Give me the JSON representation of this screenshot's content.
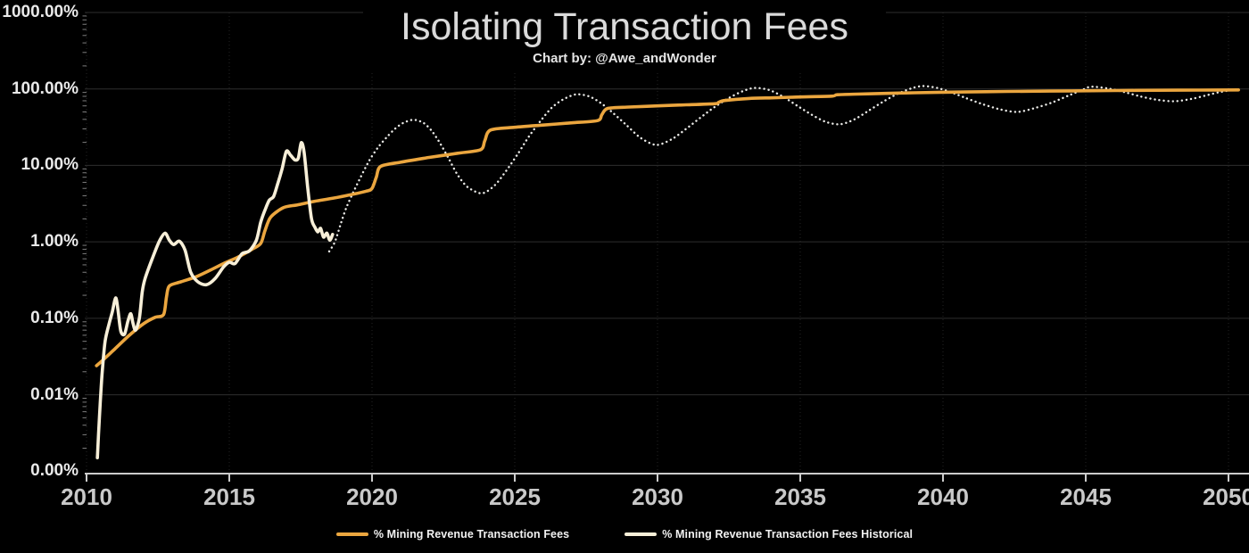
{
  "title": "Isolating Transaction Fees",
  "subtitle": "Chart by: @Awe_andWonder",
  "colors": {
    "background": "#000000",
    "model_line": "#EBA63F",
    "historical_line": "#F7EFD8",
    "projection_dotted_line": "#E9E9E6",
    "gridline": "#2e2e2e",
    "axis": "#cccccc",
    "title_text": "#dadada",
    "tick_text": "#c9c9c9"
  },
  "chart_data": {
    "type": "line",
    "title": "Isolating Transaction Fees",
    "subtitle": "Chart by: @Awe_andWonder",
    "xlabel": "",
    "ylabel": "",
    "x_axis": {
      "range": [
        2010,
        2050.5
      ],
      "tick_values": [
        2010,
        2015,
        2020,
        2025,
        2030,
        2035,
        2040,
        2045,
        2050
      ],
      "tick_labels": [
        "2010",
        "2015",
        "2020",
        "2025",
        "2030",
        "2035",
        "2040",
        "2045",
        "2050"
      ]
    },
    "y_axis": {
      "scale": "log",
      "unit": "%",
      "tick_values": [
        1000,
        100,
        10,
        1,
        0.1,
        0.01,
        0.001
      ],
      "tick_labels": [
        "1000.00%",
        "100.00%",
        "10.00%",
        "1.00%",
        "0.10%",
        "0.01%",
        "0.00%"
      ]
    },
    "legend": [
      {
        "label": "% Mining Revenue Transaction Fees",
        "color": "#EBA63F"
      },
      {
        "label": "% Mining Revenue Transaction Fees Historical",
        "color": "#F7EFD8"
      }
    ],
    "series": [
      {
        "name": "% Mining Revenue Transaction Fees Historical (projected oscillation)",
        "style": "dotted",
        "color": "#E9E9E6",
        "points": [
          [
            2018.5,
            0.75
          ],
          [
            2018.7,
            1.0
          ],
          [
            2018.9,
            1.7
          ],
          [
            2019.1,
            2.8
          ],
          [
            2019.35,
            4.5
          ],
          [
            2019.6,
            7.0
          ],
          [
            2019.9,
            11.5
          ],
          [
            2020.2,
            17.0
          ],
          [
            2020.5,
            23.0
          ],
          [
            2020.8,
            30.0
          ],
          [
            2021.1,
            36.0
          ],
          [
            2021.45,
            39.5
          ],
          [
            2021.8,
            36.0
          ],
          [
            2022.1,
            28.0
          ],
          [
            2022.4,
            19.0
          ],
          [
            2022.7,
            12.0
          ],
          [
            2023.0,
            7.5
          ],
          [
            2023.35,
            5.2
          ],
          [
            2023.85,
            4.3
          ],
          [
            2024.3,
            5.5
          ],
          [
            2024.7,
            8.5
          ],
          [
            2025.1,
            14.0
          ],
          [
            2025.5,
            24.0
          ],
          [
            2025.9,
            38.0
          ],
          [
            2026.3,
            57.0
          ],
          [
            2026.7,
            73.0
          ],
          [
            2027.15,
            85.0
          ],
          [
            2027.6,
            80.0
          ],
          [
            2028.0,
            66.0
          ],
          [
            2028.4,
            50.0
          ],
          [
            2028.9,
            34.0
          ],
          [
            2029.4,
            23.0
          ],
          [
            2029.95,
            18.5
          ],
          [
            2030.5,
            22.0
          ],
          [
            2031.0,
            30.0
          ],
          [
            2031.5,
            42.0
          ],
          [
            2032.0,
            58.0
          ],
          [
            2032.5,
            76.0
          ],
          [
            2033.0,
            94.0
          ],
          [
            2033.4,
            103.0
          ],
          [
            2033.9,
            97.0
          ],
          [
            2034.4,
            79.0
          ],
          [
            2034.9,
            60.0
          ],
          [
            2035.4,
            46.0
          ],
          [
            2035.9,
            37.0
          ],
          [
            2036.4,
            34.5
          ],
          [
            2036.9,
            40.0
          ],
          [
            2037.4,
            52.0
          ],
          [
            2037.9,
            68.0
          ],
          [
            2038.4,
            86.0
          ],
          [
            2038.9,
            102.0
          ],
          [
            2039.3,
            109.0
          ],
          [
            2039.8,
            103.0
          ],
          [
            2040.3,
            90.0
          ],
          [
            2040.8,
            76.0
          ],
          [
            2041.4,
            63.0
          ],
          [
            2042.0,
            54.0
          ],
          [
            2042.6,
            50.0
          ],
          [
            2043.2,
            56.0
          ],
          [
            2043.8,
            66.0
          ],
          [
            2044.4,
            82.0
          ],
          [
            2044.9,
            98.0
          ],
          [
            2045.2,
            107.0
          ],
          [
            2045.8,
            101.0
          ],
          [
            2046.4,
            90.0
          ],
          [
            2046.9,
            80.0
          ],
          [
            2047.5,
            72.0
          ],
          [
            2048.1,
            69.0
          ],
          [
            2048.7,
            74.0
          ],
          [
            2049.2,
            82.0
          ],
          [
            2049.7,
            91.0
          ],
          [
            2050.3,
            99.0
          ]
        ]
      },
      {
        "name": "% Mining Revenue Transaction Fees",
        "style": "solid",
        "color": "#EBA63F",
        "points": [
          [
            2010.35,
            0.024
          ],
          [
            2010.6,
            0.029
          ],
          [
            2011.0,
            0.04
          ],
          [
            2011.5,
            0.06
          ],
          [
            2012.0,
            0.085
          ],
          [
            2012.4,
            0.103
          ],
          [
            2012.7,
            0.112
          ],
          [
            2012.8,
            0.19
          ],
          [
            2012.9,
            0.265
          ],
          [
            2013.3,
            0.3
          ],
          [
            2013.8,
            0.345
          ],
          [
            2014.3,
            0.42
          ],
          [
            2014.8,
            0.52
          ],
          [
            2015.3,
            0.63
          ],
          [
            2015.8,
            0.8
          ],
          [
            2016.1,
            0.95
          ],
          [
            2016.25,
            1.4
          ],
          [
            2016.45,
            2.1
          ],
          [
            2016.9,
            2.8
          ],
          [
            2017.4,
            3.05
          ],
          [
            2018.0,
            3.4
          ],
          [
            2018.6,
            3.7
          ],
          [
            2019.2,
            4.1
          ],
          [
            2019.8,
            4.6
          ],
          [
            2020.0,
            5.0
          ],
          [
            2020.15,
            7.0
          ],
          [
            2020.3,
            9.7
          ],
          [
            2021.0,
            11.0
          ],
          [
            2022.0,
            12.7
          ],
          [
            2023.0,
            14.4
          ],
          [
            2023.8,
            16.0
          ],
          [
            2023.95,
            21.0
          ],
          [
            2024.15,
            29.0
          ],
          [
            2025.0,
            31.5
          ],
          [
            2026.0,
            33.7
          ],
          [
            2027.0,
            36.0
          ],
          [
            2027.9,
            38.5
          ],
          [
            2028.05,
            46.0
          ],
          [
            2028.25,
            55.5
          ],
          [
            2029.0,
            58.0
          ],
          [
            2030.0,
            60.0
          ],
          [
            2031.0,
            62.0
          ],
          [
            2032.0,
            64.0
          ],
          [
            2032.15,
            67.0
          ],
          [
            2032.35,
            70.5
          ],
          [
            2033.2,
            75.0
          ],
          [
            2034.0,
            76.5
          ],
          [
            2035.0,
            78.5
          ],
          [
            2036.1,
            80.5
          ],
          [
            2036.3,
            84.0
          ],
          [
            2037.0,
            85.5
          ],
          [
            2038.0,
            87.5
          ],
          [
            2039.0,
            89.0
          ],
          [
            2040.0,
            90.5
          ],
          [
            2041.5,
            92.0
          ],
          [
            2043.0,
            93.2
          ],
          [
            2044.5,
            94.2
          ],
          [
            2046.0,
            95.2
          ],
          [
            2047.5,
            96.0
          ],
          [
            2049.0,
            96.6
          ],
          [
            2050.35,
            97.2
          ]
        ]
      },
      {
        "name": "% Mining Revenue Transaction Fees Historical",
        "style": "solid",
        "color": "#F7EFD8",
        "points": [
          [
            2010.38,
            0.0015
          ],
          [
            2010.42,
            0.003
          ],
          [
            2010.48,
            0.008
          ],
          [
            2010.55,
            0.02
          ],
          [
            2010.65,
            0.05
          ],
          [
            2010.78,
            0.082
          ],
          [
            2010.9,
            0.12
          ],
          [
            2011.02,
            0.185
          ],
          [
            2011.1,
            0.13
          ],
          [
            2011.2,
            0.068
          ],
          [
            2011.33,
            0.062
          ],
          [
            2011.45,
            0.092
          ],
          [
            2011.55,
            0.115
          ],
          [
            2011.63,
            0.085
          ],
          [
            2011.72,
            0.07
          ],
          [
            2011.85,
            0.1
          ],
          [
            2011.95,
            0.22
          ],
          [
            2012.05,
            0.33
          ],
          [
            2012.3,
            0.6
          ],
          [
            2012.55,
            1.02
          ],
          [
            2012.75,
            1.3
          ],
          [
            2012.9,
            1.05
          ],
          [
            2013.05,
            0.92
          ],
          [
            2013.25,
            1.02
          ],
          [
            2013.45,
            0.78
          ],
          [
            2013.65,
            0.4
          ],
          [
            2013.9,
            0.3
          ],
          [
            2014.2,
            0.275
          ],
          [
            2014.5,
            0.33
          ],
          [
            2014.8,
            0.47
          ],
          [
            2015.0,
            0.54
          ],
          [
            2015.2,
            0.52
          ],
          [
            2015.45,
            0.7
          ],
          [
            2015.7,
            0.76
          ],
          [
            2015.95,
            1.05
          ],
          [
            2016.1,
            1.8
          ],
          [
            2016.25,
            2.6
          ],
          [
            2016.4,
            3.5
          ],
          [
            2016.55,
            3.9
          ],
          [
            2016.7,
            5.8
          ],
          [
            2016.85,
            9.0
          ],
          [
            2017.0,
            15.3
          ],
          [
            2017.15,
            13.5
          ],
          [
            2017.3,
            11.8
          ],
          [
            2017.42,
            12.5
          ],
          [
            2017.52,
            19.8
          ],
          [
            2017.62,
            15.0
          ],
          [
            2017.75,
            5.0
          ],
          [
            2017.88,
            2.0
          ],
          [
            2018.0,
            1.55
          ],
          [
            2018.1,
            1.35
          ],
          [
            2018.2,
            1.5
          ],
          [
            2018.3,
            1.15
          ],
          [
            2018.42,
            1.3
          ],
          [
            2018.52,
            1.05
          ],
          [
            2018.62,
            1.25
          ]
        ]
      }
    ]
  }
}
